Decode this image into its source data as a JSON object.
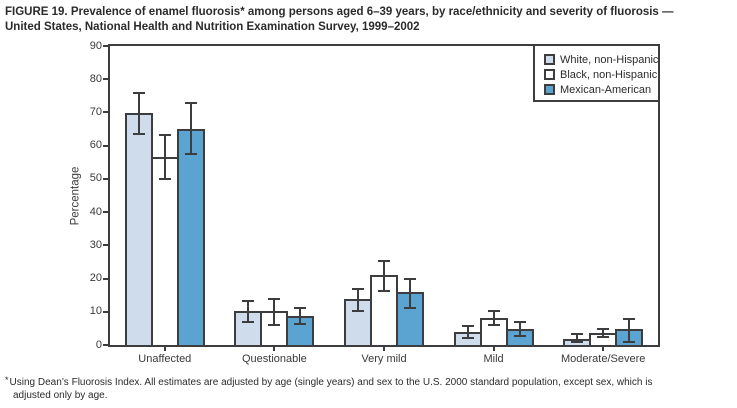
{
  "figure": {
    "footnote_marker": "*",
    "footnote_text": "Using Dean’s Fluorosis Index. All estimates are adjusted by age (single years) and sex to the U.S. 2000 standard population, except sex, which is\nadjusted only by age."
  },
  "chart_data": {
    "type": "bar",
    "title": "FIGURE 19. Prevalence of enamel fluorosis* among persons aged 6–39 years, by race/ethnicity and severity of fluorosis —\nUnited States, National Health and Nutrition Examination Survey, 1999–2002",
    "categories": [
      "Unaffected",
      "Questionable",
      "Very mild",
      "Mild",
      "Moderate/Severe"
    ],
    "series": [
      {
        "name": "White, non-Hispanic",
        "color": "#cfdcec",
        "values": [
          69.7,
          10.2,
          13.8,
          3.8,
          1.9
        ],
        "ci_low": [
          63.4,
          7.0,
          10.3,
          2.0,
          1.0
        ],
        "ci_high": [
          75.8,
          13.3,
          17.0,
          5.8,
          3.3
        ]
      },
      {
        "name": "Black, non-Hispanic",
        "color": "#ffffff",
        "values": [
          56.6,
          10.3,
          21.0,
          8.2,
          3.6
        ],
        "ci_low": [
          50.1,
          5.9,
          16.4,
          6.0,
          2.3
        ],
        "ci_high": [
          63.1,
          14.0,
          25.2,
          10.1,
          4.8
        ]
      },
      {
        "name": "Mexican-American",
        "color": "#5ba4d1",
        "values": [
          65.1,
          8.7,
          15.9,
          4.8,
          4.7
        ],
        "ci_low": [
          57.5,
          6.3,
          11.3,
          2.6,
          1.0
        ],
        "ci_high": [
          72.8,
          11.2,
          19.8,
          6.9,
          7.8
        ]
      }
    ],
    "xlabel": "",
    "ylabel": "Percentage",
    "ylim": [
      0,
      90
    ],
    "ytick_step": 10,
    "grid": false,
    "error_bars": true,
    "legend_position": "top-right",
    "axis_color": "#3d3d40"
  }
}
